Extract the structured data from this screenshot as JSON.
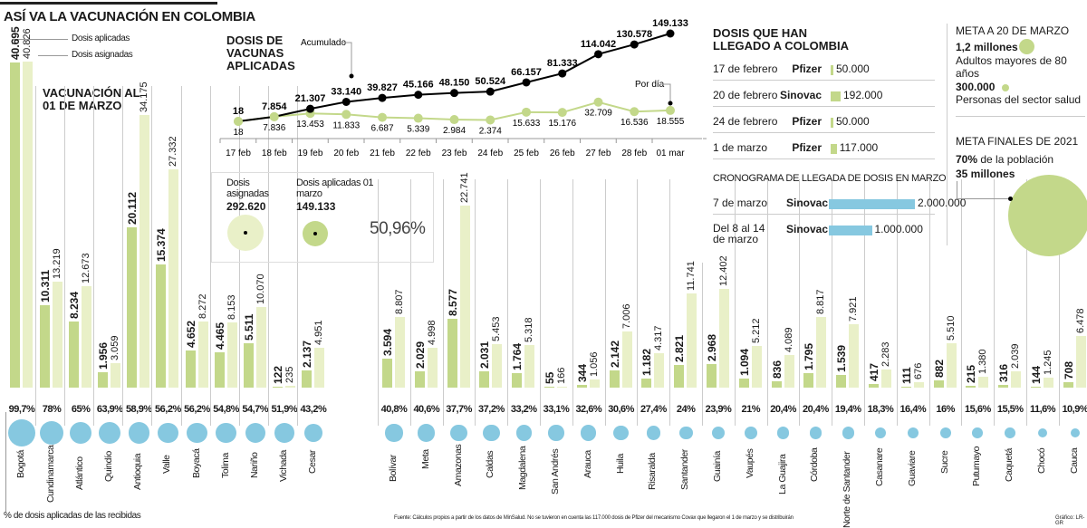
{
  "title": "ASÍ VA LA VACUNACIÓN EN COLOMBIA",
  "legend": {
    "applied": "Dosis aplicadas",
    "assigned": "Dosis asignadas"
  },
  "colors": {
    "applied": "#c3d88a",
    "assigned": "#e9f0c8",
    "percent": "#86c8e0",
    "line_cum": "#000000",
    "line_daily": "#c3d88a",
    "arrival_march": "#86c8e0"
  },
  "bars_title": "VACUNACIÓN AL 01 DE MARZO",
  "percent_note": "% de dosis aplicadas de las recibidas",
  "source": "Fuente: Cálculos propios a partir de los datos de MinSalud. No se tuvieron en cuenta las 117.000 dosis de Pfizer del mecanismo Covax que llegaron el 1 de marzo y se distribuirán",
  "credit": "Gráfico: LR-GR",
  "summary": {
    "assigned_label": "Dosis asignadas",
    "assigned_value": "292.620",
    "applied_label": "Dosis aplicadas 01 marzo",
    "applied_value": "149.133",
    "percent": "50,96%"
  },
  "arrivals": {
    "title": "DOSIS QUE HAN LLEGADO A COLOMBIA",
    "rows": [
      {
        "date": "17 de febrero",
        "brand": "Pfizer",
        "value": "50.000",
        "n": 50000
      },
      {
        "date": "20 de febrero",
        "brand": "Sinovac",
        "value": "192.000",
        "n": 192000
      },
      {
        "date": "24 de febrero",
        "brand": "Pfizer",
        "value": "50.000",
        "n": 50000
      },
      {
        "date": "1 de marzo",
        "brand": "Pfizer",
        "value": "117.000",
        "n": 117000
      }
    ],
    "march_title": "CRONOGRAMA DE LLEGADA DE DOSIS EN MARZO",
    "march_rows": [
      {
        "date": "7 de marzo",
        "brand": "Sinovac",
        "value": "2.000.000",
        "n": 2000000
      },
      {
        "date": "Del 8 al 14 de marzo",
        "brand": "Sinovac",
        "value": "1.000.000",
        "n": 1000000
      }
    ]
  },
  "goals": {
    "march_title": "META A 20 DE MARZO",
    "g1_value": "1,2 millones",
    "g1_label": "Adultos mayores de 80 años",
    "g2_value": "300.000",
    "g2_label": "Personas del sector salud",
    "final_title": "META FINALES DE 2021",
    "final_pct": "70%",
    "final_pct_label": "de la población",
    "final_value": "35 millones"
  },
  "chart_data": [
    {
      "type": "line",
      "title": "DOSIS DE VACUNAS APLICADAS",
      "categories": [
        "17 feb",
        "18 feb",
        "19 feb",
        "20 feb",
        "21 feb",
        "22 feb",
        "23 feb",
        "24 feb",
        "25 feb",
        "26 feb",
        "27 feb",
        "28 feb",
        "01 mar"
      ],
      "series": [
        {
          "name": "Acumulado",
          "values": [
            18,
            7854,
            21307,
            33140,
            39827,
            45166,
            48150,
            50524,
            66157,
            81333,
            114042,
            130578,
            149133
          ],
          "labels": [
            "18",
            "7.854",
            "21.307",
            "33.140",
            "39.827",
            "45.166",
            "48.150",
            "50.524",
            "66.157",
            "81.333",
            "114.042",
            "130.578",
            "149.133"
          ]
        },
        {
          "name": "Por día",
          "values": [
            18,
            7836,
            13453,
            11833,
            6687,
            5339,
            2984,
            2374,
            15633,
            15176,
            32709,
            16536,
            18555
          ],
          "labels": [
            "18",
            "7.836",
            "13.453",
            "11.833",
            "6.687",
            "5.339",
            "2.984",
            "2.374",
            "15.633",
            "15.176",
            "32.709",
            "16.536",
            "18.555"
          ]
        }
      ]
    },
    {
      "type": "bar",
      "title": "VACUNACIÓN AL 01 DE MARZO",
      "categories": [
        "Bogotá",
        "Cundinamarca",
        "Atlántico",
        "Quindío",
        "Antioquia",
        "Valle",
        "Boyacá",
        "Tolima",
        "Nariño",
        "Vichada",
        "Cesar",
        "Bolívar",
        "Meta",
        "Amazonas",
        "Caldas",
        "Magdalena",
        "San Andrés",
        "Arauca",
        "Huila",
        "Risaralda",
        "Santander",
        "Guainía",
        "Vaupés",
        "La Guajira",
        "Córdoba",
        "Norte de Santander",
        "Casanare",
        "Guaviare",
        "Sucre",
        "Putumayo",
        "Caquetá",
        "Chocó",
        "Cauca"
      ],
      "series": [
        {
          "name": "Dosis aplicadas",
          "values": [
            40695,
            10311,
            8234,
            1956,
            20112,
            15374,
            4652,
            4465,
            5511,
            122,
            2137,
            3594,
            2029,
            8577,
            2031,
            1764,
            55,
            344,
            2142,
            1182,
            2821,
            2968,
            1094,
            836,
            1795,
            1539,
            417,
            111,
            882,
            215,
            316,
            144,
            708
          ]
        },
        {
          "name": "Dosis asignadas",
          "values": [
            40826,
            13219,
            12673,
            3059,
            34175,
            27332,
            8272,
            8153,
            10070,
            235,
            4951,
            8807,
            4998,
            22741,
            5453,
            5318,
            166,
            1056,
            7006,
            4317,
            11741,
            12402,
            5212,
            4089,
            8817,
            7921,
            2283,
            676,
            5510,
            1380,
            2039,
            1245,
            6478
          ]
        }
      ],
      "percent_labels": [
        "99,7%",
        "78%",
        "65%",
        "63,9%",
        "58,9%",
        "56,2%",
        "56,2%",
        "54,8%",
        "54,7%",
        "51,9%",
        "43,2%",
        "40,8%",
        "40,6%",
        "37,7%",
        "37,2%",
        "33,2%",
        "33,1%",
        "32,6%",
        "30,6%",
        "27,4%",
        "24%",
        "23,9%",
        "21%",
        "20,4%",
        "20,4%",
        "19,4%",
        "18,3%",
        "16,4%",
        "16%",
        "15,6%",
        "15,5%",
        "11,6%",
        "10,9%"
      ],
      "percent_values": [
        99.7,
        78,
        65,
        63.9,
        58.9,
        56.2,
        56.2,
        54.8,
        54.7,
        51.9,
        43.2,
        40.8,
        40.6,
        37.7,
        37.2,
        33.2,
        33.1,
        32.6,
        30.6,
        27.4,
        24,
        23.9,
        21,
        20.4,
        20.4,
        19.4,
        18.3,
        16.4,
        16,
        15.6,
        15.5,
        11.6,
        10.9
      ]
    }
  ]
}
